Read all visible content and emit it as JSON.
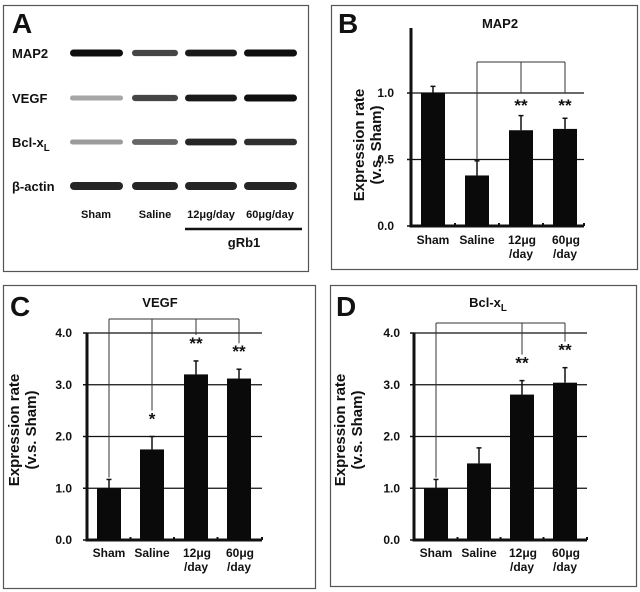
{
  "figure": {
    "panels": [
      "A",
      "B",
      "C",
      "D"
    ]
  },
  "blot": {
    "letter": "A",
    "rows": [
      {
        "label": "MAP2",
        "sub": "",
        "intensity": [
          1.0,
          0.75,
          0.95,
          1.0
        ]
      },
      {
        "label": "VEGF",
        "sub": "",
        "intensity": [
          0.3,
          0.75,
          0.95,
          1.0
        ]
      },
      {
        "label": "Bcl-x",
        "sub": "L",
        "intensity": [
          0.35,
          0.6,
          0.9,
          0.85
        ]
      },
      {
        "label": "β-actin",
        "sub": "",
        "intensity": [
          0.9,
          0.9,
          0.9,
          0.9
        ]
      }
    ],
    "lanes": [
      "Sham",
      "Saline",
      "12μg/day",
      "60μg/day"
    ],
    "group_label": "gRb1"
  },
  "chart_data": [
    {
      "panel": "B",
      "type": "bar",
      "title": "MAP2",
      "title_sub": "",
      "categories": [
        [
          "Sham"
        ],
        [
          "Saline"
        ],
        [
          "12μg",
          "/day"
        ],
        [
          "60μg",
          "/day"
        ]
      ],
      "values": [
        1.0,
        0.38,
        0.72,
        0.73
      ],
      "error_upper": [
        1.05,
        0.49,
        0.83,
        0.81
      ],
      "significance": [
        "",
        "",
        "**",
        "**"
      ],
      "comparison_reference": "Saline",
      "ylabel": [
        "Expression rate",
        "(v.s. Sham)"
      ],
      "yticks": [
        "0.0",
        "0.5",
        "1.0"
      ],
      "ytick_values": [
        0,
        0.5,
        1.0
      ],
      "ylim": [
        0,
        1.5
      ],
      "grid": true
    },
    {
      "panel": "C",
      "type": "bar",
      "title": "VEGF",
      "title_sub": "",
      "categories": [
        [
          "Sham"
        ],
        [
          "Saline"
        ],
        [
          "12μg",
          "/day"
        ],
        [
          "60μg",
          "/day"
        ]
      ],
      "values": [
        1.0,
        1.75,
        3.2,
        3.12
      ],
      "error_upper": [
        1.17,
        2.0,
        3.46,
        3.3
      ],
      "significance": [
        "",
        "*",
        "**",
        "**"
      ],
      "comparison_reference": "Sham",
      "ylabel": [
        "Expression rate",
        "(v.s. Sham)"
      ],
      "yticks": [
        "0.0",
        "1.0",
        "2.0",
        "3.0",
        "4.0"
      ],
      "ytick_values": [
        0,
        1,
        2,
        3,
        4
      ],
      "ylim": [
        0,
        4
      ],
      "grid": true
    },
    {
      "panel": "D",
      "type": "bar",
      "title": "Bcl-x",
      "title_sub": "L",
      "categories": [
        [
          "Sham"
        ],
        [
          "Saline"
        ],
        [
          "12μg",
          "/day"
        ],
        [
          "60μg",
          "/day"
        ]
      ],
      "values": [
        1.0,
        1.48,
        2.81,
        3.04
      ],
      "error_upper": [
        1.17,
        1.78,
        3.08,
        3.33
      ],
      "significance": [
        "",
        "",
        "**",
        "**"
      ],
      "comparison_reference": "Sham",
      "ylabel": [
        "Expression rate",
        "(v.s. Sham)"
      ],
      "yticks": [
        "0.0",
        "1.0",
        "2.0",
        "3.0",
        "4.0"
      ],
      "ytick_values": [
        0,
        1,
        2,
        3,
        4
      ],
      "ylim": [
        0,
        4
      ],
      "grid": true
    }
  ]
}
